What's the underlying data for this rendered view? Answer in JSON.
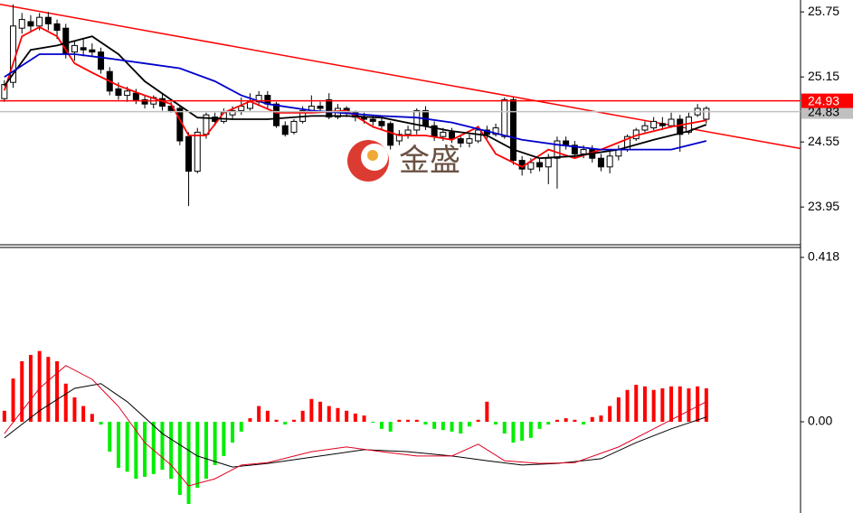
{
  "watermark": "金盛",
  "chart_data": [
    {
      "type": "candlestick",
      "ylim": [
        23.61,
        25.86
      ],
      "yticks": [
        25.75,
        25.15,
        24.55,
        23.95
      ],
      "open": [
        24.95,
        25.1,
        25.6,
        25.66,
        25.62,
        25.7,
        25.64,
        25.6,
        25.38,
        25.42,
        25.4,
        25.38,
        25.2,
        25.04,
        24.98,
        25.0,
        24.94,
        24.9,
        24.95,
        24.88,
        24.86,
        24.6,
        24.28,
        24.62,
        24.78,
        24.74,
        24.8,
        24.84,
        24.86,
        24.92,
        24.98,
        24.9,
        24.7,
        24.64,
        24.74,
        24.84,
        24.88,
        24.94,
        24.78,
        24.86,
        24.82,
        24.78,
        24.76,
        24.74,
        24.72,
        24.56,
        24.62,
        24.66,
        24.84,
        24.7,
        24.6,
        24.64,
        24.58,
        24.54,
        24.56,
        24.66,
        24.62,
        24.6,
        24.94,
        24.38,
        24.3,
        24.36,
        24.32,
        24.4,
        24.56,
        24.52,
        24.44,
        24.48,
        24.4,
        24.32,
        24.42,
        24.48,
        24.58,
        24.66,
        24.68,
        24.72,
        24.7,
        24.76,
        24.64,
        24.8,
        24.76
      ],
      "high": [
        25.12,
        25.82,
        25.74,
        25.72,
        25.74,
        25.75,
        25.68,
        25.64,
        25.48,
        25.5,
        25.46,
        25.42,
        25.24,
        25.1,
        25.06,
        25.04,
        24.98,
        24.98,
        24.99,
        24.92,
        24.88,
        24.64,
        24.68,
        24.82,
        24.82,
        24.86,
        24.88,
        24.96,
        25.0,
        25.02,
        25.02,
        24.92,
        24.74,
        24.76,
        24.88,
        24.98,
        24.92,
        25.0,
        24.9,
        24.88,
        24.84,
        24.82,
        24.8,
        24.78,
        24.74,
        24.66,
        24.7,
        24.86,
        24.88,
        24.74,
        24.68,
        24.68,
        24.62,
        24.62,
        24.7,
        24.7,
        24.72,
        24.96,
        24.96,
        24.42,
        24.4,
        24.4,
        24.44,
        24.6,
        24.6,
        24.56,
        24.52,
        24.52,
        24.44,
        24.46,
        24.52,
        24.62,
        24.68,
        24.74,
        24.78,
        24.78,
        24.82,
        24.8,
        24.82,
        24.9,
        24.88
      ],
      "low": [
        24.92,
        25.05,
        25.55,
        25.56,
        25.58,
        25.58,
        25.5,
        25.32,
        25.3,
        25.34,
        25.34,
        25.18,
        24.98,
        24.94,
        24.92,
        24.9,
        24.86,
        24.86,
        24.84,
        24.82,
        24.52,
        23.96,
        24.26,
        24.58,
        24.7,
        24.72,
        24.76,
        24.8,
        24.84,
        24.88,
        24.86,
        24.68,
        24.6,
        24.62,
        24.72,
        24.82,
        24.82,
        24.76,
        24.76,
        24.78,
        24.74,
        24.72,
        24.7,
        24.66,
        24.48,
        24.52,
        24.58,
        24.62,
        24.66,
        24.56,
        24.56,
        24.54,
        24.5,
        24.5,
        24.54,
        24.58,
        24.6,
        24.58,
        24.34,
        24.24,
        24.26,
        24.28,
        24.16,
        24.12,
        24.48,
        24.4,
        24.4,
        24.36,
        24.28,
        24.26,
        24.38,
        24.46,
        24.56,
        24.64,
        24.66,
        24.66,
        24.68,
        24.46,
        24.62,
        24.78,
        24.72
      ],
      "close": [
        25.08,
        25.62,
        25.68,
        25.62,
        25.7,
        25.64,
        25.58,
        25.36,
        25.44,
        25.4,
        25.38,
        25.22,
        25.02,
        24.98,
        25.02,
        24.94,
        24.9,
        24.96,
        24.88,
        24.84,
        24.56,
        24.28,
        24.64,
        24.8,
        24.74,
        24.82,
        24.84,
        24.88,
        24.92,
        24.98,
        24.9,
        24.7,
        24.62,
        24.74,
        24.84,
        24.88,
        24.86,
        24.78,
        24.86,
        24.82,
        24.78,
        24.76,
        24.74,
        24.7,
        24.52,
        24.62,
        24.66,
        24.84,
        24.7,
        24.6,
        24.64,
        24.58,
        24.54,
        24.58,
        24.66,
        24.62,
        24.68,
        24.94,
        24.38,
        24.3,
        24.36,
        24.32,
        24.4,
        24.56,
        24.52,
        24.44,
        24.48,
        24.4,
        24.32,
        24.42,
        24.48,
        24.6,
        24.66,
        24.7,
        24.74,
        24.7,
        24.76,
        24.62,
        24.78,
        24.86,
        24.86
      ],
      "ma": [
        {
          "color": "#ff0000",
          "x": [
            0,
            2,
            4,
            6,
            8,
            10,
            13,
            16,
            19,
            21,
            23,
            25,
            28,
            31,
            35,
            39,
            42,
            45,
            48,
            51,
            54,
            56,
            59,
            62,
            65,
            68,
            72,
            76,
            80
          ],
          "values": [
            25.025,
            25.525,
            25.61,
            25.525,
            25.275,
            25.19,
            25.07,
            24.98,
            24.9,
            24.61,
            24.61,
            24.82,
            24.925,
            24.82,
            24.82,
            24.84,
            24.69,
            24.61,
            24.61,
            24.57,
            24.69,
            24.44,
            24.32,
            24.48,
            24.4,
            24.48,
            24.61,
            24.69,
            24.75
          ]
        },
        {
          "color": "#000000",
          "x": [
            0,
            3,
            6,
            10,
            13,
            16,
            19,
            22,
            26,
            30,
            35,
            39,
            43,
            47,
            51,
            55,
            58,
            61,
            65,
            70,
            74,
            78,
            80
          ],
          "values": [
            25.067,
            25.4,
            25.44,
            25.525,
            25.36,
            25.11,
            24.94,
            24.775,
            24.76,
            24.76,
            24.79,
            24.79,
            24.775,
            24.71,
            24.65,
            24.61,
            24.48,
            24.4,
            24.42,
            24.48,
            24.57,
            24.65,
            24.71
          ]
        },
        {
          "color": "#0000cc",
          "x": [
            0,
            4,
            8,
            12,
            16,
            20,
            24,
            27,
            30,
            35,
            39,
            43,
            47,
            51,
            55,
            59,
            63,
            68,
            72,
            76,
            80
          ],
          "values": [
            25.15,
            25.36,
            25.36,
            25.32,
            25.275,
            25.23,
            25.11,
            24.98,
            24.9,
            24.84,
            24.815,
            24.79,
            24.775,
            24.73,
            24.65,
            24.57,
            24.525,
            24.48,
            24.48,
            24.48,
            24.56
          ]
        }
      ],
      "trendlines": [
        {
          "color": "#ff0000",
          "x": [
            -0.5,
            90.7
          ],
          "values": [
            25.82,
            24.49
          ]
        }
      ],
      "price_lines": [
        {
          "value": 24.83,
          "color": "#c0c0c0",
          "text_color": "#000000"
        },
        {
          "value": 24.93,
          "color": "#ff0000",
          "text_color": "#ffffff"
        }
      ]
    },
    {
      "type": "bar",
      "ylim": [
        -0.232,
        0.441
      ],
      "yticks": [
        0.418,
        {
          "value": 0,
          "label": "0.00"
        }
      ],
      "positive_color": "#ff0000",
      "negative_color": "#00ee00",
      "values": [
        0.028,
        0.11,
        0.154,
        0.17,
        0.18,
        0.165,
        0.154,
        0.097,
        0.062,
        0.04,
        0.02,
        -0.007,
        -0.076,
        -0.117,
        -0.127,
        -0.145,
        -0.14,
        -0.133,
        -0.122,
        -0.145,
        -0.186,
        -0.209,
        -0.168,
        -0.145,
        -0.11,
        -0.087,
        -0.053,
        -0.025,
        0.009,
        0.04,
        0.028,
        0.005,
        -0.007,
        0.005,
        0.028,
        0.058,
        0.051,
        0.04,
        0.035,
        0.028,
        0.021,
        0.016,
        -0.002,
        -0.018,
        -0.025,
        0.005,
        0.005,
        0.005,
        -0.007,
        -0.018,
        -0.021,
        -0.025,
        -0.03,
        -0.012,
        0.005,
        0.051,
        -0.007,
        -0.03,
        -0.053,
        -0.048,
        -0.041,
        -0.018,
        -0.007,
        0.005,
        0.009,
        0.005,
        -0.007,
        0.012,
        0.016,
        0.04,
        0.062,
        0.081,
        0.094,
        0.09,
        0.081,
        0.085,
        0.09,
        0.09,
        0.085,
        0.09,
        0.085
      ],
      "lines": [
        {
          "color": "#000000",
          "x": [
            0,
            4,
            8,
            11,
            14,
            18,
            22,
            26,
            30,
            36,
            41,
            46,
            51,
            55,
            59,
            63,
            68,
            72,
            76,
            80
          ],
          "values": [
            -0.041,
            0.028,
            0.085,
            0.097,
            0.051,
            -0.03,
            -0.087,
            -0.115,
            -0.106,
            -0.087,
            -0.071,
            -0.076,
            -0.087,
            -0.099,
            -0.11,
            -0.106,
            -0.094,
            -0.053,
            -0.018,
            0.012
          ]
        },
        {
          "color": "#e00020",
          "x": [
            0,
            4,
            7,
            10,
            13,
            16,
            19,
            21,
            24,
            27,
            30,
            35,
            39,
            43,
            47,
            51,
            54,
            57,
            61,
            65,
            70,
            74,
            78,
            80
          ],
          "values": [
            -0.03,
            0.085,
            0.143,
            0.108,
            0.039,
            -0.053,
            -0.11,
            -0.163,
            -0.145,
            -0.11,
            -0.104,
            -0.076,
            -0.064,
            -0.076,
            -0.087,
            -0.087,
            -0.057,
            -0.099,
            -0.106,
            -0.104,
            -0.064,
            -0.018,
            0.028,
            0.051
          ]
        }
      ]
    }
  ]
}
